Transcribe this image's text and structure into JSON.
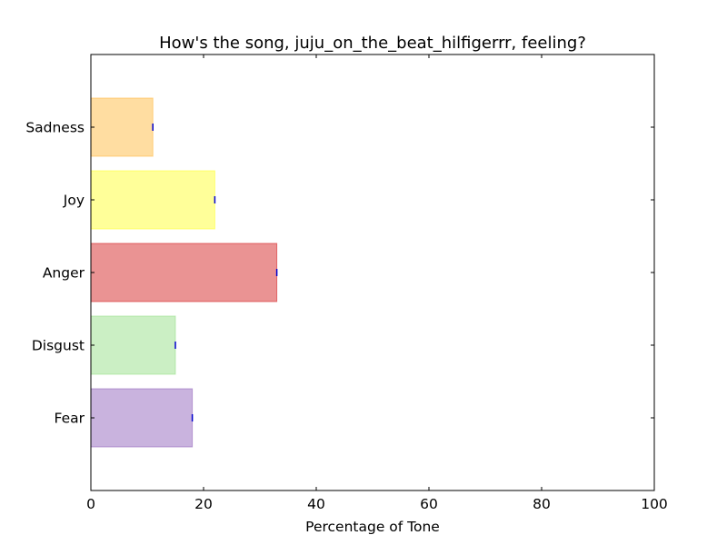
{
  "chart_data": {
    "type": "bar",
    "orientation": "horizontal",
    "title": "How's the song, juju_on_the_beat_hilfigerrr, feeling?",
    "xlabel": "Percentage of Tone",
    "ylabel": "",
    "xlim": [
      0,
      100
    ],
    "xticks": [
      0,
      20,
      40,
      60,
      80,
      100
    ],
    "categories": [
      "Fear",
      "Disgust",
      "Anger",
      "Joy",
      "Sadness"
    ],
    "values": [
      18,
      15,
      33,
      22,
      11
    ],
    "error": [
      0,
      0,
      0,
      0,
      0
    ],
    "colors": [
      "#9467bd",
      "#98df8a",
      "#d62728",
      "#ffff33",
      "#ffbb44"
    ],
    "edge_colors": [
      "#9467bd",
      "#98df8a",
      "#d62728",
      "#ffff33",
      "#ffbb44"
    ],
    "bar_alpha": 0.5,
    "error_color": "#0000cc",
    "grid": false,
    "legend": "none"
  }
}
